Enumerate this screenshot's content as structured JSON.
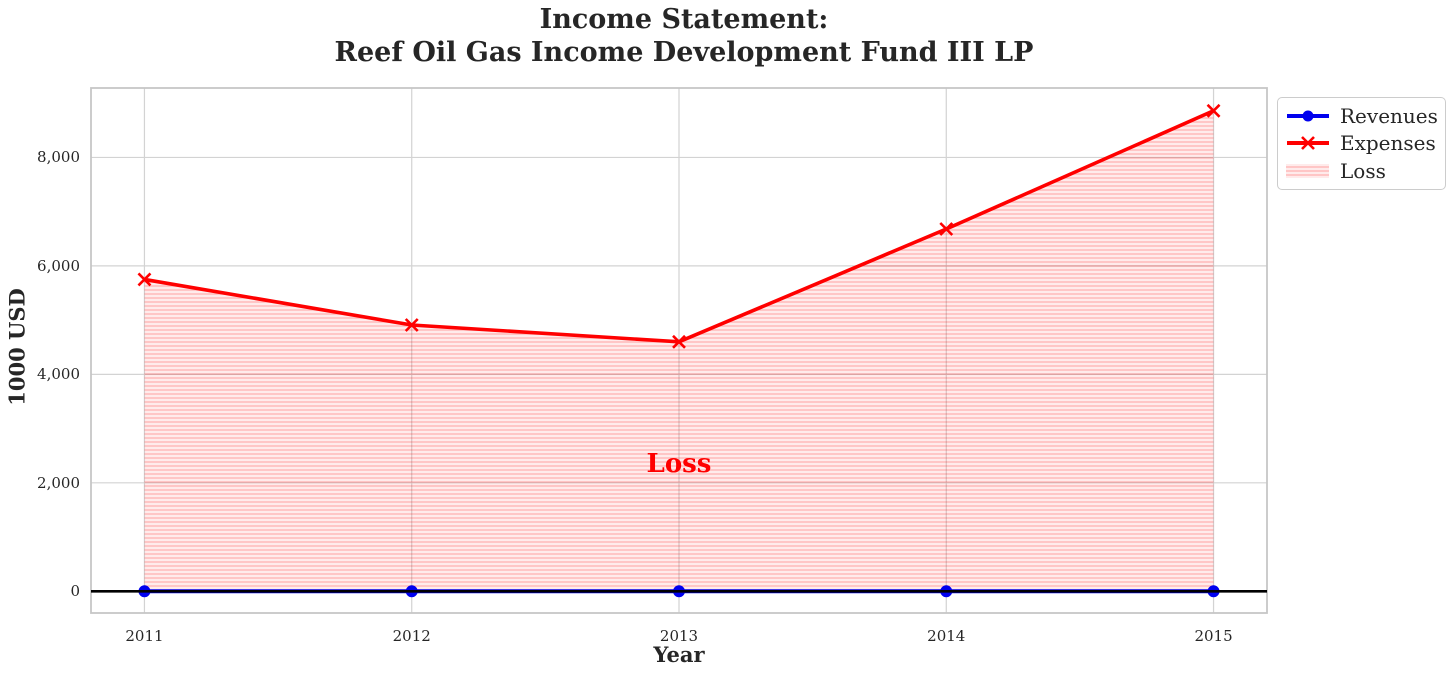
{
  "figure": {
    "title_line1": "Income Statement:",
    "title_line2": "Reef Oil Gas Income Development Fund III LP"
  },
  "chart_data": {
    "type": "line",
    "title": "Income Statement:\nReef Oil Gas Income Development Fund III LP",
    "xlabel": "Year",
    "ylabel": "1000 USD",
    "x": [
      2011,
      2012,
      2013,
      2014,
      2015
    ],
    "x_tick_labels": [
      "2011",
      "2012",
      "2013",
      "2014",
      "2015"
    ],
    "y_ticks": [
      0,
      2000,
      4000,
      6000,
      8000
    ],
    "y_tick_labels": [
      "0",
      "2,000",
      "4,000",
      "6,000",
      "8,000"
    ],
    "xlim": [
      2010.8,
      2015.2
    ],
    "ylim": [
      -400,
      9280
    ],
    "grid": true,
    "grid_color": "#d3d3d3",
    "axis_color": "#c6c6c6",
    "tick_color": "#262626",
    "zero_line_color": "#000000",
    "series": [
      {
        "name": "Revenues",
        "color": "#0000ee",
        "marker": "circle",
        "values": [
          0,
          0,
          0,
          0,
          0
        ]
      },
      {
        "name": "Expenses",
        "color": "#ff0000",
        "marker": "x",
        "values": [
          5750,
          4910,
          4600,
          6680,
          8860
        ]
      }
    ],
    "loss_region": {
      "label": "Loss",
      "between": [
        "Expenses",
        "Revenues"
      ],
      "fill_color": "rgba(255,0,0,0.08)",
      "hatch": "horizontal",
      "hatch_color": "rgba(255,0,0,0.22)"
    },
    "annotation": {
      "text": "Loss",
      "x": 2013,
      "y": 2350,
      "color": "#ff0000"
    },
    "legend": {
      "position": "upper right",
      "items": [
        "Revenues",
        "Expenses",
        "Loss"
      ]
    }
  }
}
